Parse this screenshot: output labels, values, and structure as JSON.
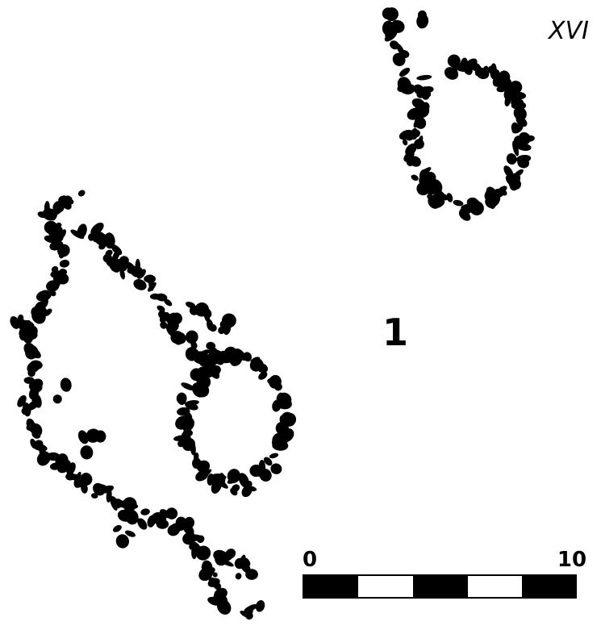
{
  "plan_label": "XVI",
  "figure_number": "1",
  "scale_bar": {
    "start": "0",
    "end": "10"
  }
}
